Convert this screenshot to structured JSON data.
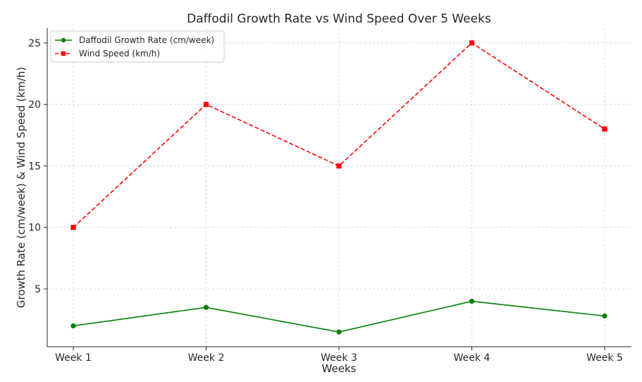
{
  "chart_data": {
    "type": "line",
    "title": "Daffodil Growth Rate vs Wind Speed Over 5 Weeks",
    "xlabel": "Weeks",
    "ylabel": "Growth Rate (cm/week) & Wind Speed (km/h)",
    "categories": [
      "Week 1",
      "Week 2",
      "Week 3",
      "Week 4",
      "Week 5"
    ],
    "yticks": [
      5,
      10,
      15,
      20,
      25
    ],
    "ylim": [
      0.3,
      26.2
    ],
    "grid": true,
    "legend_position": "top-left",
    "series": [
      {
        "name": "Daffodil Growth Rate (cm/week)",
        "values": [
          2.0,
          3.5,
          1.5,
          4.0,
          2.8
        ],
        "color": "#008000",
        "marker": "circle",
        "line_style": "solid"
      },
      {
        "name": "Wind Speed (km/h)",
        "values": [
          10,
          20,
          15,
          25,
          18
        ],
        "color": "#ff0000",
        "marker": "square",
        "line_style": "dashed"
      }
    ]
  }
}
